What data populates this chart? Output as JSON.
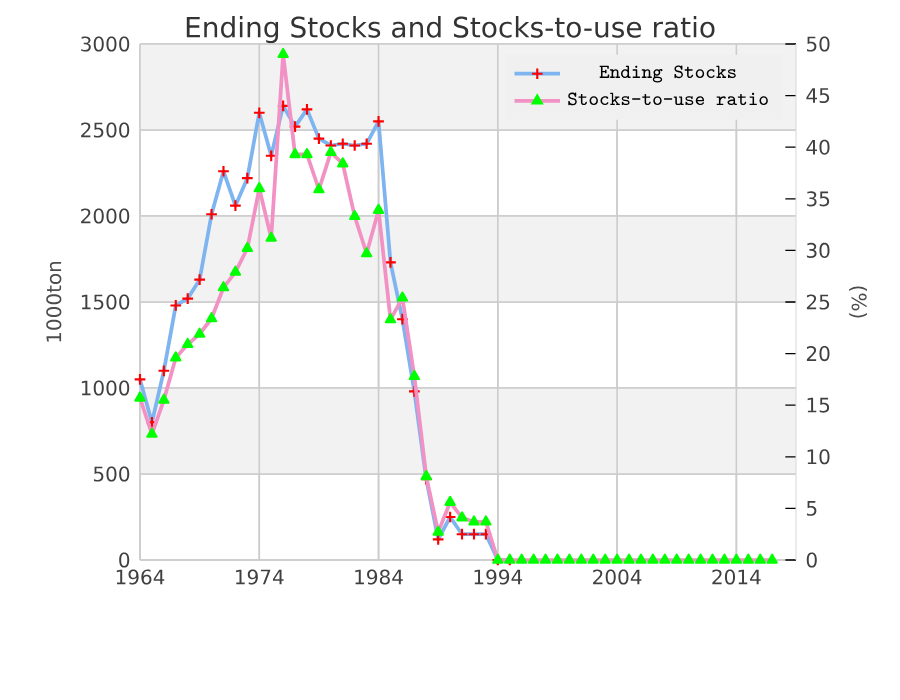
{
  "chart_data": {
    "type": "line",
    "title": "Ending Stocks and Stocks-to-use ratio",
    "ylabel": "1000ton",
    "y2label": "(%)",
    "x": [
      1964,
      1965,
      1966,
      1967,
      1968,
      1969,
      1970,
      1971,
      1972,
      1973,
      1974,
      1975,
      1976,
      1977,
      1978,
      1979,
      1980,
      1981,
      1982,
      1983,
      1984,
      1985,
      1986,
      1987,
      1988,
      1989,
      1990,
      1991,
      1992,
      1993,
      1994,
      1995,
      1996,
      1997,
      1998,
      1999,
      2000,
      2001,
      2002,
      2003,
      2004,
      2005,
      2006,
      2007,
      2008,
      2009,
      2010,
      2011,
      2012,
      2013,
      2014,
      2015,
      2016,
      2017
    ],
    "series": [
      {
        "name": "Ending Stocks",
        "color": "#7eb4ef",
        "marker": "cross",
        "values": [
          1050,
          800,
          1100,
          1480,
          1520,
          1630,
          2010,
          2260,
          2060,
          2220,
          2600,
          2350,
          2640,
          2520,
          2620,
          2450,
          2410,
          2420,
          2410,
          2420,
          2550,
          1730,
          1400,
          980,
          470,
          120,
          250,
          150,
          150,
          150,
          0,
          0,
          null,
          null,
          null,
          null,
          null,
          null,
          null,
          null,
          null,
          null,
          null,
          null,
          null,
          null,
          null,
          null,
          null,
          null,
          null,
          null,
          null,
          null
        ]
      },
      {
        "name": "Stocks-to-use ratio",
        "color": "#f291c4",
        "marker": "triangle",
        "axis": "y2",
        "values": [
          15.7,
          12.2,
          15.5,
          19.6,
          20.9,
          21.9,
          23.4,
          26.4,
          27.9,
          30.2,
          36.0,
          31.2,
          49.0,
          39.3,
          39.3,
          35.9,
          39.5,
          38.4,
          33.3,
          29.7,
          33.9,
          23.3,
          25.4,
          17.8,
          8.1,
          2.7,
          5.6,
          4.1,
          3.7,
          3.7,
          0,
          0,
          0,
          0,
          0,
          0,
          0,
          0,
          0,
          0,
          0,
          0,
          0,
          0,
          0,
          0,
          0,
          0,
          0,
          0,
          0,
          0,
          0,
          0
        ]
      }
    ],
    "xlim": [
      1964,
      2019
    ],
    "xticks": [
      1964,
      1974,
      1984,
      1994,
      2004,
      2014
    ],
    "ylim": [
      0,
      3000
    ],
    "yticks": [
      0,
      500,
      1000,
      1500,
      2000,
      2500,
      3000
    ],
    "y2lim": [
      0,
      50
    ],
    "y2ticks": [
      0,
      5,
      10,
      15,
      20,
      25,
      30,
      35,
      40,
      45,
      50
    ],
    "grid": true,
    "legend": "top right"
  }
}
